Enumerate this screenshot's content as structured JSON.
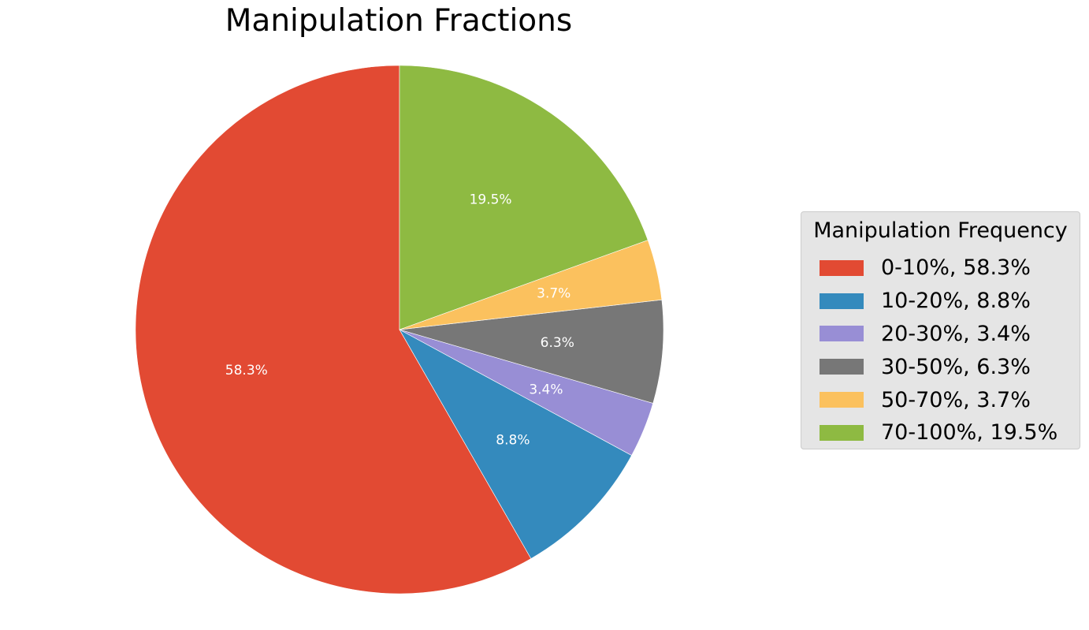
{
  "chart_data": {
    "type": "pie",
    "title": "Manipulation Fractions",
    "legend": {
      "title": "Manipulation Frequency",
      "placement": "center-right"
    },
    "start_angle_deg": 90,
    "direction": "counterclockwise",
    "slices": [
      {
        "category": "0-10%",
        "value": 58.3,
        "pct_label": "58.3%",
        "legend_label": "0-10%, 58.3%",
        "color": "#E24A33"
      },
      {
        "category": "10-20%",
        "value": 8.8,
        "pct_label": "8.8%",
        "legend_label": "10-20%, 8.8%",
        "color": "#348ABD"
      },
      {
        "category": "20-30%",
        "value": 3.4,
        "pct_label": "3.4%",
        "legend_label": "20-30%, 3.4%",
        "color": "#988ED5"
      },
      {
        "category": "30-50%",
        "value": 6.3,
        "pct_label": "6.3%",
        "legend_label": "30-50%, 6.3%",
        "color": "#777777"
      },
      {
        "category": "50-70%",
        "value": 3.7,
        "pct_label": "3.7%",
        "legend_label": "50-70%, 3.7%",
        "color": "#FBC15E"
      },
      {
        "category": "70-100%",
        "value": 19.5,
        "pct_label": "19.5%",
        "legend_label": "70-100%, 19.5%",
        "color": "#8EBA42"
      }
    ]
  }
}
